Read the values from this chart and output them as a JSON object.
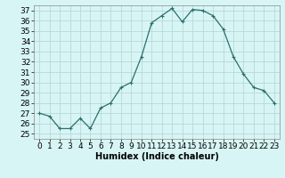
{
  "x": [
    0,
    1,
    2,
    3,
    4,
    5,
    6,
    7,
    8,
    9,
    10,
    11,
    12,
    13,
    14,
    15,
    16,
    17,
    18,
    19,
    20,
    21,
    22,
    23
  ],
  "y": [
    27.0,
    26.7,
    25.5,
    25.5,
    26.5,
    25.5,
    27.5,
    28.0,
    29.5,
    30.0,
    32.5,
    35.8,
    36.5,
    37.2,
    35.9,
    37.1,
    37.0,
    36.5,
    35.2,
    32.5,
    30.8,
    29.5,
    29.2,
    28.0
  ],
  "line_color": "#2d6e6e",
  "marker": "+",
  "marker_size": 3,
  "marker_lw": 0.8,
  "bg_color": "#d8f5f5",
  "grid_color": "#b8d8d8",
  "xlabel": "Humidex (Indice chaleur)",
  "xlim": [
    -0.5,
    23.5
  ],
  "ylim": [
    24.5,
    37.5
  ],
  "yticks": [
    25,
    26,
    27,
    28,
    29,
    30,
    31,
    32,
    33,
    34,
    35,
    36,
    37
  ],
  "xticks": [
    0,
    1,
    2,
    3,
    4,
    5,
    6,
    7,
    8,
    9,
    10,
    11,
    12,
    13,
    14,
    15,
    16,
    17,
    18,
    19,
    20,
    21,
    22,
    23
  ],
  "xlabel_fontsize": 7,
  "tick_fontsize": 6.5,
  "line_width": 0.9
}
